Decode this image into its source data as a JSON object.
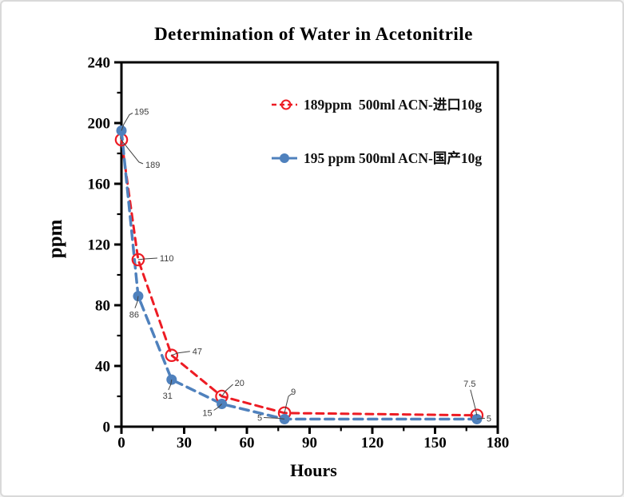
{
  "page": {
    "background": "#ffffff",
    "border_color": "#d9d9d9"
  },
  "chart_data": {
    "type": "line",
    "title": "Determination of Water in Acetonitrile",
    "xlabel": "Hours",
    "ylabel": "ppm",
    "xlim": [
      0,
      180
    ],
    "ylim": [
      0,
      240
    ],
    "x_major_ticks": [
      0,
      30,
      60,
      90,
      120,
      150,
      180
    ],
    "x_minor_step": 15,
    "y_major_ticks": [
      0,
      40,
      80,
      120,
      160,
      200,
      240
    ],
    "y_minor_step": 20,
    "grid": false,
    "legend_position": "inside-top-right",
    "axis_color": "#000000",
    "point_label_color": "#3d3d3d",
    "series": [
      {
        "name": "189ppm  500ml ACN-进口10g",
        "color": "#ed1c24",
        "line_style": "dashed",
        "marker": "open-circle",
        "x": [
          0,
          8,
          24,
          48,
          78,
          170
        ],
        "values": [
          189,
          110,
          47,
          20,
          9,
          7.5
        ],
        "point_labels": [
          "189",
          "110",
          "47",
          "20",
          "9",
          "7.5"
        ]
      },
      {
        "name": "195 ppm 500ml ACN-国产10g",
        "color": "#4f81bd",
        "line_style": "dashed",
        "marker": "filled-circle",
        "x": [
          0,
          8,
          24,
          48,
          78,
          170
        ],
        "values": [
          195,
          86,
          31,
          15,
          5,
          5
        ],
        "point_labels": [
          "195",
          "86",
          "31",
          "15",
          "5",
          "5"
        ]
      }
    ]
  }
}
